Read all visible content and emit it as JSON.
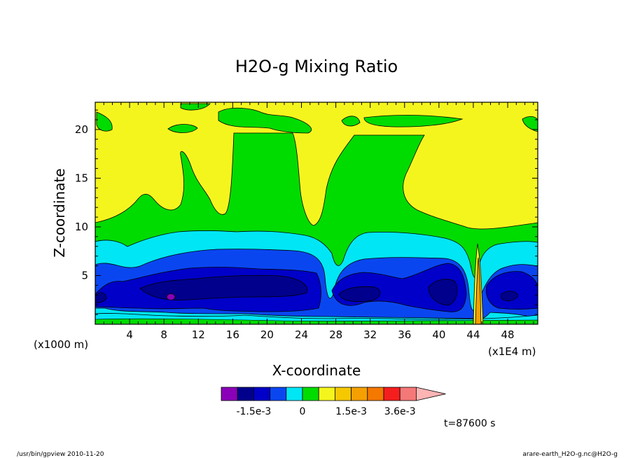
{
  "chart_data": {
    "type": "heatmap",
    "title": "H2O-g Mixing Ratio",
    "xlabel": "X-coordinate",
    "ylabel": "Z-coordinate",
    "x_unit_left": "(x1000 m)",
    "x_unit_right": "(x1E4 m)",
    "x_ticks": [
      "4",
      "8",
      "12",
      "16",
      "20",
      "24",
      "28",
      "32",
      "36",
      "40",
      "44",
      "48"
    ],
    "y_ticks": [
      "5",
      "10",
      "15",
      "20"
    ],
    "xlim": [
      0,
      51.5
    ],
    "ylim": [
      0,
      22.8
    ],
    "colorbar": {
      "labels": [
        "-1.5e-3",
        "0",
        "1.5e-3",
        "3.6e-3"
      ],
      "colors": [
        "#8a00b8",
        "#00008c",
        "#0000c8",
        "#0a46f0",
        "#00e6f5",
        "#00dc00",
        "#f5f51e",
        "#f5c800",
        "#f5a000",
        "#f57800",
        "#f51e1e",
        "#f57878",
        "#ffb4b4"
      ]
    },
    "time_label": "t=87600 s",
    "footer_left": "/usr/bin/gpview  2010-11-20",
    "footer_right": "arare-earth_H2O-g.nc@H2O-g"
  }
}
